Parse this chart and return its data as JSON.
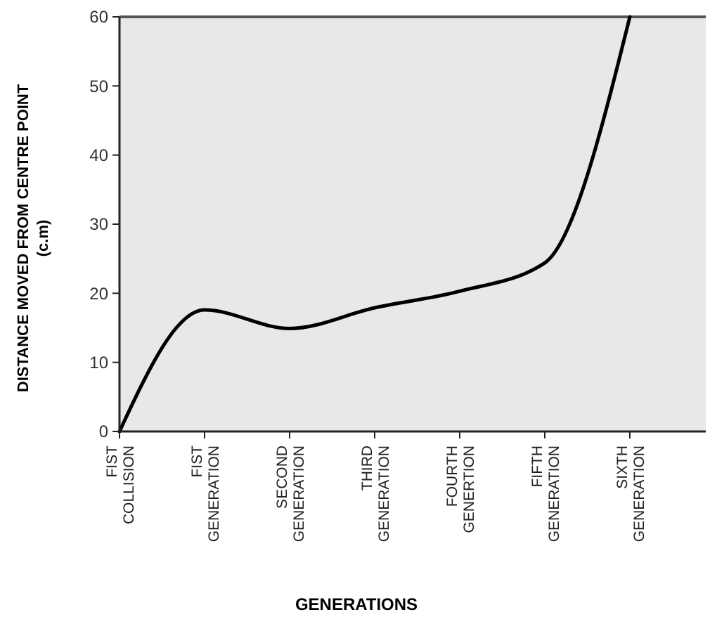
{
  "chart_data": {
    "type": "line",
    "xlabel": "GENERATIONS",
    "ylabel": "DISTANCE MOVED FROM CENTRE POINT\n(c.m)",
    "categories": [
      "FIST\nCOLLISION",
      "FIST\nGENERATION",
      "SECOND\nGENERATION",
      "THIRD\nGENERATION",
      "FOURTH\nGENERTION",
      "FIFTH\nGENERATION",
      "SIXTH\nGENERATION"
    ],
    "series": [
      {
        "color": "#000000",
        "values": [
          0,
          17.6,
          14.9,
          17.9,
          20.3,
          24.4,
          60
        ]
      }
    ],
    "ylim": [
      0,
      60
    ],
    "yticks": [
      0,
      10,
      20,
      30,
      40,
      50,
      60
    ],
    "marker": "none",
    "line_style": "solid"
  }
}
